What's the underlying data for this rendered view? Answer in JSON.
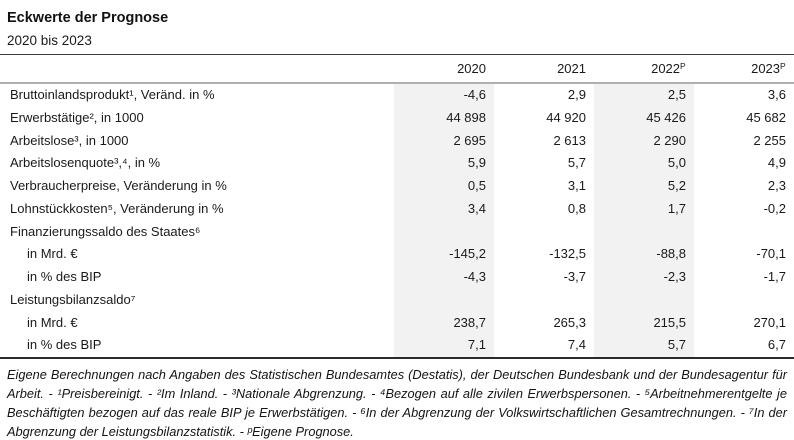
{
  "header": {
    "title": "Eckwerte der Prognose",
    "subtitle": "2020 bis 2023"
  },
  "table": {
    "columns": [
      {
        "label": "2020",
        "sup": "",
        "shaded": true
      },
      {
        "label": "2021",
        "sup": "",
        "shaded": false
      },
      {
        "label": "2022",
        "sup": "P",
        "shaded": true
      },
      {
        "label": "2023",
        "sup": "P",
        "shaded": false
      }
    ],
    "rows": [
      {
        "label": "Bruttoinlandsprodukt¹, Veränd. in %",
        "indent": false,
        "values": [
          "-4,6",
          "2,9",
          "2,5",
          "3,6"
        ]
      },
      {
        "label": "Erwerbstätige², in 1000",
        "indent": false,
        "values": [
          "44 898",
          "44 920",
          "45 426",
          "45 682"
        ]
      },
      {
        "label": "Arbeitslose³, in 1000",
        "indent": false,
        "values": [
          "2 695",
          "2 613",
          "2 290",
          "2 255"
        ]
      },
      {
        "label": "Arbeitslosenquote³,⁴, in %",
        "indent": false,
        "values": [
          "5,9",
          "5,7",
          "5,0",
          "4,9"
        ]
      },
      {
        "label": "Verbraucherpreise, Veränderung in %",
        "indent": false,
        "values": [
          "0,5",
          "3,1",
          "5,2",
          "2,3"
        ]
      },
      {
        "label": "Lohnstückkosten⁵, Veränderung in %",
        "indent": false,
        "values": [
          "3,4",
          "0,8",
          "1,7",
          "-0,2"
        ]
      },
      {
        "label": "Finanzierungssaldo des Staates⁶",
        "indent": false,
        "values": [
          "",
          "",
          "",
          ""
        ]
      },
      {
        "label": "in Mrd. €",
        "indent": true,
        "values": [
          "-145,2",
          "-132,5",
          "-88,8",
          "-70,1"
        ]
      },
      {
        "label": "in % des BIP",
        "indent": true,
        "values": [
          "-4,3",
          "-3,7",
          "-2,3",
          "-1,7"
        ]
      },
      {
        "label": "Leistungsbilanzsaldo⁷",
        "indent": false,
        "values": [
          "",
          "",
          "",
          ""
        ]
      },
      {
        "label": "in Mrd. €",
        "indent": true,
        "values": [
          "238,7",
          "265,3",
          "215,5",
          "270,1"
        ]
      },
      {
        "label": "in % des BIP",
        "indent": true,
        "values": [
          "7,1",
          "7,4",
          "5,7",
          "6,7"
        ]
      }
    ]
  },
  "footnote": {
    "text": "Eigene Berechnungen nach Angaben des Statistischen Bundesamtes (Destatis), der Deutschen Bundesbank und der Bundesagentur für Arbeit. - ¹Preisbereinigt. - ²Im Inland. - ³Nationale Abgrenzung. - ⁴Bezogen auf alle zivilen Erwerbspersonen. - ⁵Arbeitnehmerentgelte je Beschäftigten bezogen auf das reale BIP je Erwerbstätigen. - ⁶In der Abgrenzung der Volkswirtschaftlichen Gesamtrechnungen. - ⁷In der Abgrenzung der Leistungsbilanzstatistik. - ᵖEigene Prognose."
  },
  "colors": {
    "shade": "#f2f2f2",
    "header_rule": "#b0b0b0",
    "bottom_rule": "#2b2b2b",
    "text": "#1a1a1a"
  }
}
